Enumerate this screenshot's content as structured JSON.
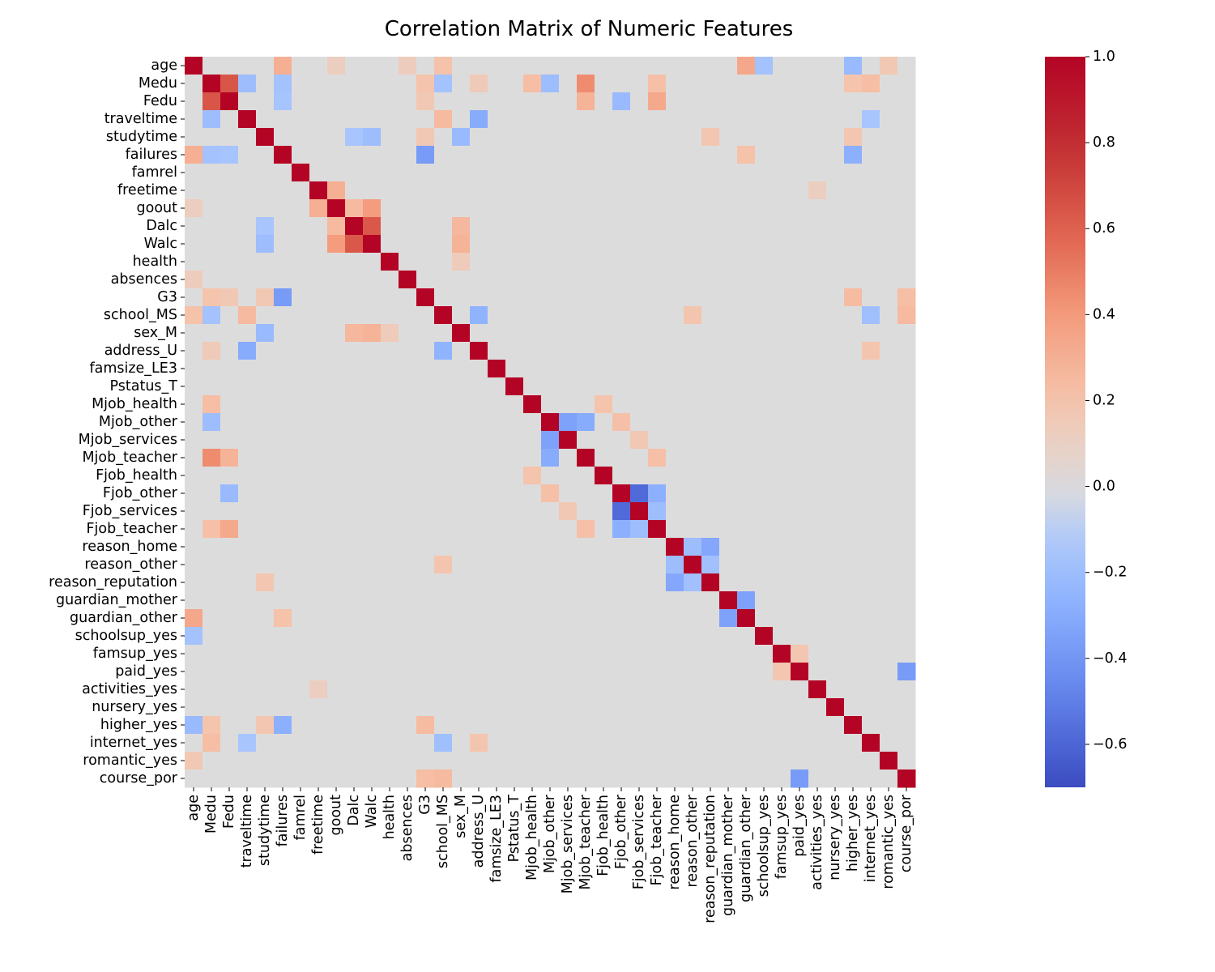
{
  "chart_data": {
    "type": "heatmap",
    "title": "Correlation Matrix of Numeric Features",
    "xlabel": "",
    "ylabel": "",
    "colormap": "coolwarm",
    "vmin": -0.7,
    "vmax": 1.0,
    "colors": {
      "low": "#6788ee",
      "mid": "#dddcdc",
      "high": "#b40426"
    },
    "features": [
      "age",
      "Medu",
      "Fedu",
      "traveltime",
      "studytime",
      "failures",
      "famrel",
      "freetime",
      "goout",
      "Dalc",
      "Walc",
      "health",
      "absences",
      "G3",
      "school_MS",
      "sex_M",
      "address_U",
      "famsize_LE3",
      "Pstatus_T",
      "Mjob_health",
      "Mjob_other",
      "Mjob_services",
      "Mjob_teacher",
      "Fjob_health",
      "Fjob_other",
      "Fjob_services",
      "Fjob_teacher",
      "reason_home",
      "reason_other",
      "reason_reputation",
      "guardian_mother",
      "guardian_other",
      "schoolsup_yes",
      "famsup_yes",
      "paid_yes",
      "activities_yes",
      "nursery_yes",
      "higher_yes",
      "internet_yes",
      "romantic_yes",
      "course_por"
    ],
    "colorbar_ticks": [
      {
        "value": 1.0,
        "label": "1.0"
      },
      {
        "value": 0.8,
        "label": "0.8"
      },
      {
        "value": 0.6,
        "label": "0.6"
      },
      {
        "value": 0.4,
        "label": "0.4"
      },
      {
        "value": 0.2,
        "label": "0.2"
      },
      {
        "value": 0.0,
        "label": "0.0"
      },
      {
        "value": -0.2,
        "label": "−0.2"
      },
      {
        "value": -0.4,
        "label": "−0.4"
      },
      {
        "value": -0.6,
        "label": "−0.6"
      }
    ],
    "correlations": [
      {
        "row": "Medu",
        "col": "Fedu",
        "value": 0.64
      },
      {
        "row": "Dalc",
        "col": "Walc",
        "value": 0.63
      },
      {
        "row": "Fjob_other",
        "col": "Fjob_services",
        "value": -0.58
      },
      {
        "row": "age",
        "col": "guardian_other",
        "value": 0.34
      },
      {
        "row": "age",
        "col": "failures",
        "value": 0.3
      },
      {
        "row": "age",
        "col": "romantic_yes",
        "value": 0.17
      },
      {
        "row": "age",
        "col": "school_MS",
        "value": 0.21
      },
      {
        "row": "age",
        "col": "higher_yes",
        "value": -0.22
      },
      {
        "row": "age",
        "col": "schoolsup_yes",
        "value": -0.17
      },
      {
        "row": "age",
        "col": "absences",
        "value": 0.13
      },
      {
        "row": "age",
        "col": "goout",
        "value": 0.12
      },
      {
        "row": "Medu",
        "col": "Mjob_teacher",
        "value": 0.45
      },
      {
        "row": "Medu",
        "col": "Fjob_teacher",
        "value": 0.22
      },
      {
        "row": "Medu",
        "col": "Mjob_health",
        "value": 0.23
      },
      {
        "row": "Medu",
        "col": "higher_yes",
        "value": 0.2
      },
      {
        "row": "Medu",
        "col": "internet_yes",
        "value": 0.23
      },
      {
        "row": "Medu",
        "col": "G3",
        "value": 0.2
      },
      {
        "row": "Medu",
        "col": "address_U",
        "value": 0.15
      },
      {
        "row": "Medu",
        "col": "traveltime",
        "value": -0.2
      },
      {
        "row": "Medu",
        "col": "Mjob_other",
        "value": -0.2
      },
      {
        "row": "Medu",
        "col": "school_MS",
        "value": -0.17
      },
      {
        "row": "Medu",
        "col": "failures",
        "value": -0.17
      },
      {
        "row": "Fedu",
        "col": "Fjob_teacher",
        "value": 0.33
      },
      {
        "row": "Fedu",
        "col": "Mjob_teacher",
        "value": 0.28
      },
      {
        "row": "Fedu",
        "col": "Fjob_other",
        "value": -0.22
      },
      {
        "row": "Fedu",
        "col": "G3",
        "value": 0.17
      },
      {
        "row": "Fedu",
        "col": "failures",
        "value": -0.16
      },
      {
        "row": "traveltime",
        "col": "address_U",
        "value": -0.3
      },
      {
        "row": "traveltime",
        "col": "school_MS",
        "value": 0.25
      },
      {
        "row": "traveltime",
        "col": "internet_yes",
        "value": -0.15
      },
      {
        "row": "studytime",
        "col": "sex_M",
        "value": -0.22
      },
      {
        "row": "studytime",
        "col": "Walc",
        "value": -0.2
      },
      {
        "row": "studytime",
        "col": "Dalc",
        "value": -0.15
      },
      {
        "row": "studytime",
        "col": "reason_reputation",
        "value": 0.18
      },
      {
        "row": "studytime",
        "col": "G3",
        "value": 0.17
      },
      {
        "row": "studytime",
        "col": "higher_yes",
        "value": 0.18
      },
      {
        "row": "failures",
        "col": "G3",
        "value": -0.38
      },
      {
        "row": "failures",
        "col": "higher_yes",
        "value": -0.28
      },
      {
        "row": "failures",
        "col": "guardian_other",
        "value": 0.21
      },
      {
        "row": "freetime",
        "col": "goout",
        "value": 0.3
      },
      {
        "row": "freetime",
        "col": "activities_yes",
        "value": 0.12
      },
      {
        "row": "goout",
        "col": "Walc",
        "value": 0.39
      },
      {
        "row": "goout",
        "col": "Dalc",
        "value": 0.25
      },
      {
        "row": "Dalc",
        "col": "sex_M",
        "value": 0.26
      },
      {
        "row": "Walc",
        "col": "sex_M",
        "value": 0.28
      },
      {
        "row": "health",
        "col": "sex_M",
        "value": 0.14
      },
      {
        "row": "G3",
        "col": "course_por",
        "value": 0.23
      },
      {
        "row": "G3",
        "col": "higher_yes",
        "value": 0.24
      },
      {
        "row": "school_MS",
        "col": "address_U",
        "value": -0.26
      },
      {
        "row": "school_MS",
        "col": "course_por",
        "value": 0.25
      },
      {
        "row": "school_MS",
        "col": "internet_yes",
        "value": -0.19
      },
      {
        "row": "school_MS",
        "col": "reason_other",
        "value": 0.19
      },
      {
        "row": "address_U",
        "col": "internet_yes",
        "value": 0.19
      },
      {
        "row": "Mjob_other",
        "col": "Mjob_services",
        "value": -0.35
      },
      {
        "row": "Mjob_other",
        "col": "Mjob_teacher",
        "value": -0.3
      },
      {
        "row": "Mjob_other",
        "col": "Fjob_other",
        "value": 0.22
      },
      {
        "row": "Mjob_health",
        "col": "Fjob_health",
        "value": 0.2
      },
      {
        "row": "Mjob_services",
        "col": "Fjob_services",
        "value": 0.17
      },
      {
        "row": "Mjob_teacher",
        "col": "Fjob_teacher",
        "value": 0.22
      },
      {
        "row": "Fjob_other",
        "col": "Fjob_teacher",
        "value": -0.28
      },
      {
        "row": "Fjob_services",
        "col": "Fjob_teacher",
        "value": -0.2
      },
      {
        "row": "reason_home",
        "col": "reason_reputation",
        "value": -0.32
      },
      {
        "row": "reason_home",
        "col": "reason_other",
        "value": -0.2
      },
      {
        "row": "reason_other",
        "col": "reason_reputation",
        "value": -0.18
      },
      {
        "row": "guardian_mother",
        "col": "guardian_other",
        "value": -0.35
      },
      {
        "row": "famsup_yes",
        "col": "paid_yes",
        "value": 0.18
      },
      {
        "row": "paid_yes",
        "col": "course_por",
        "value": -0.38
      }
    ],
    "default_value": 0.0
  }
}
